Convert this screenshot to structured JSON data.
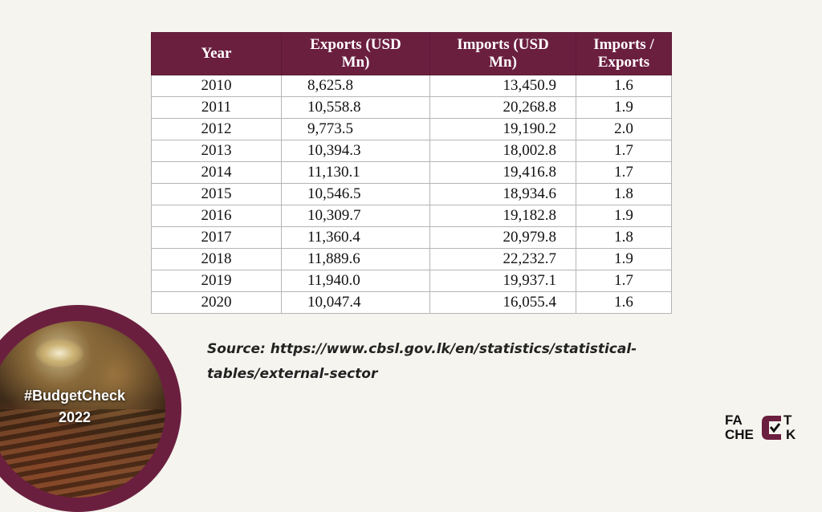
{
  "table": {
    "headers": {
      "year": "Year",
      "exports": [
        "Exports (USD",
        "Mn)"
      ],
      "imports": [
        "Imports (USD",
        "Mn)"
      ],
      "ratio": [
        "Imports /",
        "Exports"
      ]
    },
    "rows": [
      {
        "year": "2010",
        "exports": "8,625.8",
        "imports": "13,450.9",
        "ratio": "1.6"
      },
      {
        "year": "2011",
        "exports": "10,558.8",
        "imports": "20,268.8",
        "ratio": "1.9"
      },
      {
        "year": "2012",
        "exports": "9,773.5",
        "imports": "19,190.2",
        "ratio": "2.0"
      },
      {
        "year": "2013",
        "exports": "10,394.3",
        "imports": "18,002.8",
        "ratio": "1.7"
      },
      {
        "year": "2014",
        "exports": "11,130.1",
        "imports": "19,416.8",
        "ratio": "1.7"
      },
      {
        "year": "2015",
        "exports": "10,546.5",
        "imports": "18,934.6",
        "ratio": "1.8"
      },
      {
        "year": "2016",
        "exports": "10,309.7",
        "imports": "19,182.8",
        "ratio": "1.9"
      },
      {
        "year": "2017",
        "exports": "11,360.4",
        "imports": "20,979.8",
        "ratio": "1.8"
      },
      {
        "year": "2018",
        "exports": "11,889.6",
        "imports": "22,232.7",
        "ratio": "1.9"
      },
      {
        "year": "2019",
        "exports": "11,940.0",
        "imports": "19,937.1",
        "ratio": "1.7"
      },
      {
        "year": "2020",
        "exports": "10,047.4",
        "imports": "16,055.4",
        "ratio": "1.6"
      }
    ]
  },
  "source": {
    "line1": "Source: https://www.cbsl.gov.lk/en/statistics/statistical-",
    "line2": "tables/external-sector"
  },
  "badge": {
    "line1": "#BudgetCheck",
    "line2": "2022"
  },
  "logo": {
    "top": "FA  T",
    "bottom": "CHE  K",
    "mark_letter": "C",
    "icon": "check-icon"
  },
  "colors": {
    "accent": "#6b1f3f",
    "background": "#f5f4ee"
  }
}
